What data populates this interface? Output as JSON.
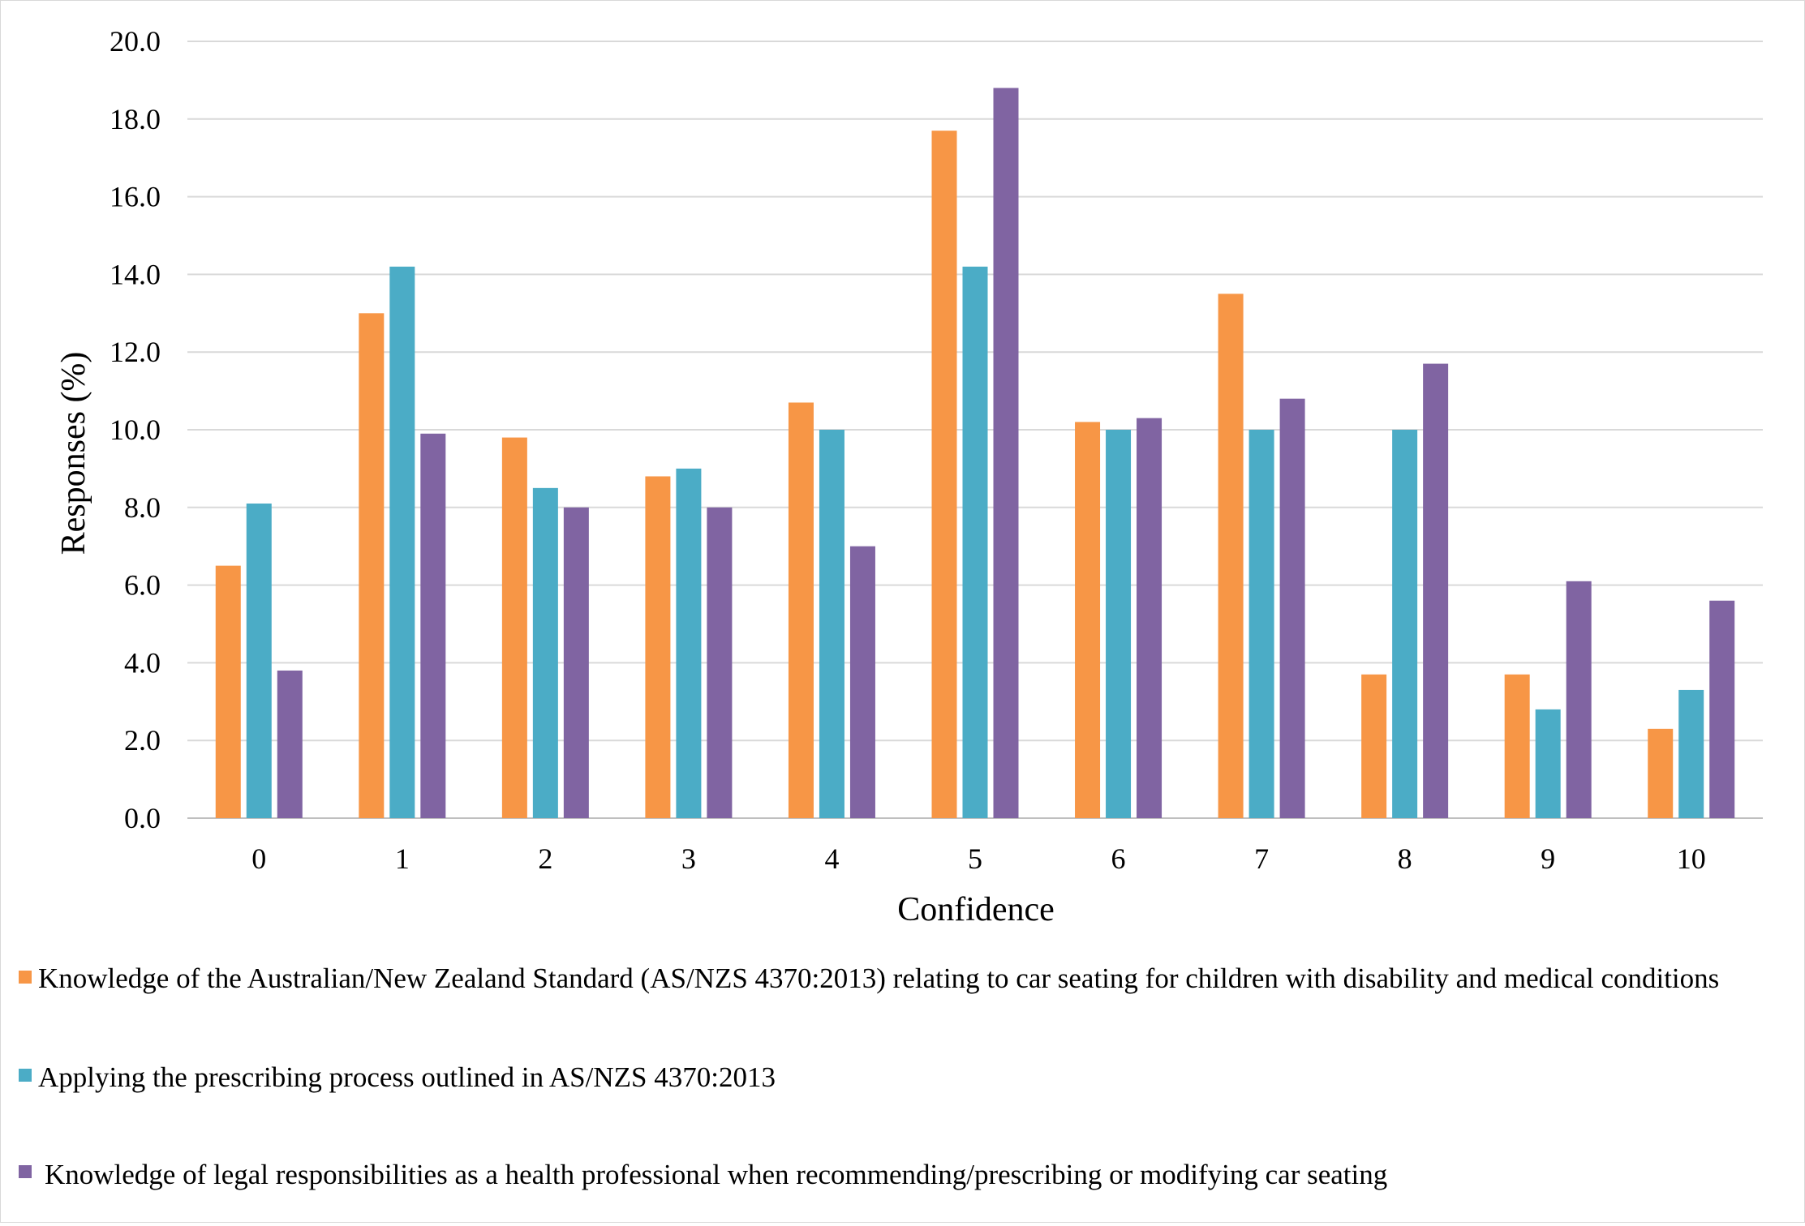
{
  "chart_data": {
    "type": "bar",
    "title": "",
    "xlabel": "Confidence",
    "ylabel": "Responses (%)",
    "ylim": [
      0,
      20
    ],
    "ytick_step": 2,
    "ytick_labels": [
      "0.0",
      "2.0",
      "4.0",
      "6.0",
      "8.0",
      "10.0",
      "12.0",
      "14.0",
      "16.0",
      "18.0",
      "20.0"
    ],
    "grid": true,
    "legend_position": "bottom",
    "categories": [
      "0",
      "1",
      "2",
      "3",
      "4",
      "5",
      "6",
      "7",
      "8",
      "9",
      "10"
    ],
    "series": [
      {
        "name": "Knowledge of the Australian/New Zealand Standard (AS/NZS 4370:2013) relating to car seating for children with disability and medical conditions",
        "color": "#F79646",
        "values": [
          6.5,
          13.0,
          9.8,
          8.8,
          10.7,
          17.7,
          10.2,
          13.5,
          3.7,
          3.7,
          2.3
        ]
      },
      {
        "name": "Applying the prescribing process outlined in AS/NZS 4370:2013",
        "color": "#4BACC6",
        "values": [
          8.1,
          14.2,
          8.5,
          9.0,
          10.0,
          14.2,
          10.0,
          10.0,
          10.0,
          2.8,
          3.3
        ]
      },
      {
        "name": "Knowledge of legal responsibilities as a health professional when recommending/prescribing or modifying car seating",
        "color": "#8064A2",
        "values": [
          3.8,
          9.9,
          8.0,
          8.0,
          7.0,
          18.8,
          10.3,
          10.8,
          11.7,
          6.1,
          5.6
        ]
      }
    ]
  }
}
